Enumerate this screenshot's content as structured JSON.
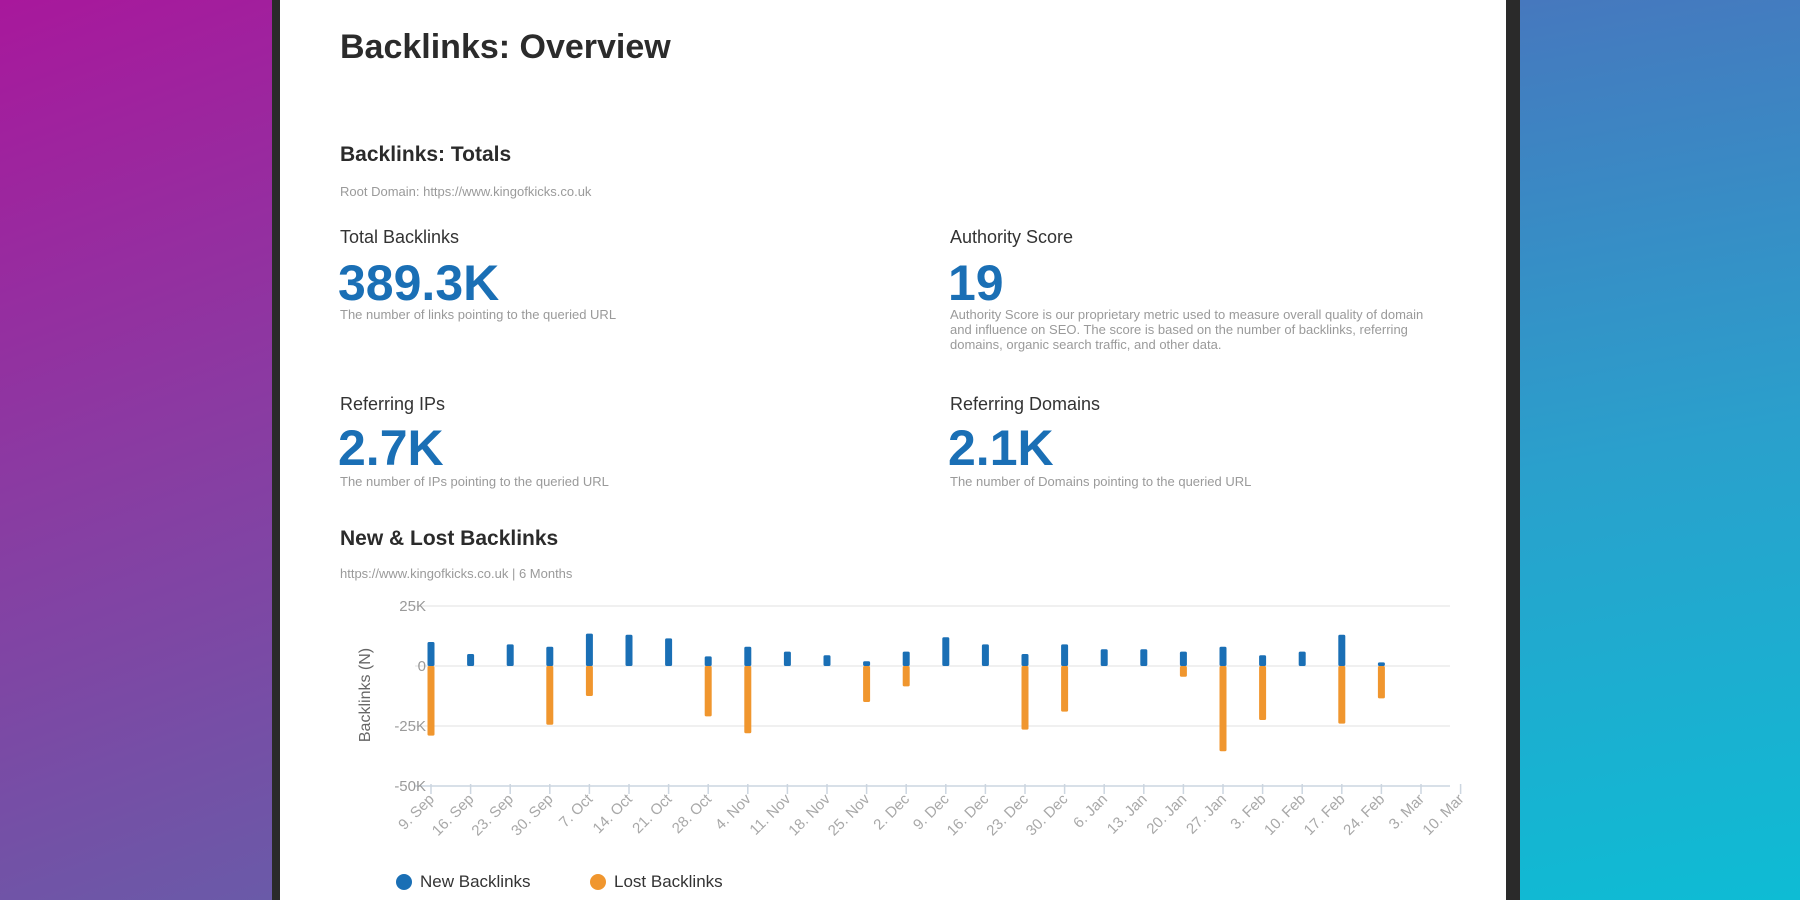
{
  "page": {
    "title": "Backlinks: Overview",
    "totals_heading": "Backlinks: Totals",
    "root_domain": "Root Domain: https://www.kingofkicks.co.uk",
    "metrics": [
      {
        "label": "Total Backlinks",
        "value": "389.3K",
        "desc": "The number of links pointing to the queried URL"
      },
      {
        "label": "Authority Score",
        "value": "19",
        "desc": "Authority Score is our proprietary metric used to measure overall quality of domain and influence on SEO. The score is based on the number of backlinks, referring domains, organic search traffic, and other data."
      },
      {
        "label": "Referring IPs",
        "value": "2.7K",
        "desc": "The number of IPs pointing to the queried URL"
      },
      {
        "label": "Referring Domains",
        "value": "2.1K",
        "desc": "The number of Domains pointing to the queried URL"
      }
    ],
    "chart_heading": "New & Lost Backlinks",
    "chart_subtitle": "https://www.kingofkicks.co.uk | 6 Months"
  },
  "colors": {
    "accent": "#1a6fb5",
    "new": "#1a6fb5",
    "lost": "#f0962e"
  },
  "chart_data": {
    "type": "bar",
    "ylabel": "Backlinks (N)",
    "ylim": [
      -50000,
      25000
    ],
    "yticks": [
      25000,
      0,
      -25000,
      -50000
    ],
    "ytick_labels": [
      "25K",
      "0",
      "-25K",
      "-50K"
    ],
    "grid": true,
    "legend": "bottom-left",
    "categories": [
      "9. Sep",
      "16. Sep",
      "23. Sep",
      "30. Sep",
      "7. Oct",
      "14. Oct",
      "21. Oct",
      "28. Oct",
      "4. Nov",
      "11. Nov",
      "18. Nov",
      "25. Nov",
      "2. Dec",
      "9. Dec",
      "16. Dec",
      "23. Dec",
      "30. Dec",
      "6. Jan",
      "13. Jan",
      "20. Jan",
      "27. Jan",
      "3. Feb",
      "10. Feb",
      "17. Feb",
      "24. Feb",
      "3. Mar",
      "10. Mar"
    ],
    "series": [
      {
        "name": "New Backlinks",
        "values": [
          10000,
          5000,
          9000,
          8000,
          13500,
          13000,
          11500,
          4000,
          8000,
          6000,
          4500,
          2000,
          6000,
          12000,
          9000,
          5000,
          9000,
          7000,
          7000,
          6000,
          8000,
          4500,
          6000,
          13000,
          1500,
          0,
          0
        ]
      },
      {
        "name": "Lost Backlinks",
        "values": [
          -29000,
          0,
          0,
          -24500,
          -12500,
          0,
          0,
          -21000,
          -28000,
          0,
          0,
          -15000,
          -8500,
          0,
          0,
          -26500,
          -19000,
          0,
          0,
          -4500,
          -35500,
          -22500,
          0,
          -24000,
          -13500,
          0,
          0
        ]
      }
    ]
  }
}
